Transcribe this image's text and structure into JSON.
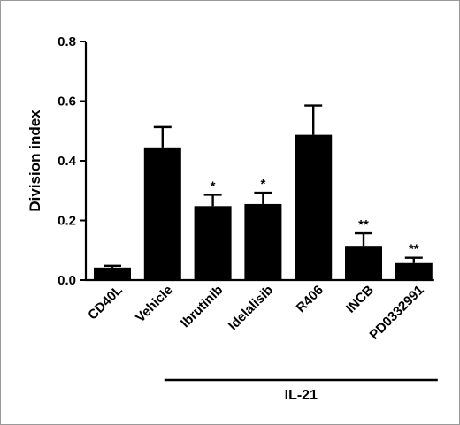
{
  "chart_data": {
    "type": "bar",
    "categories": [
      "CD40L",
      "Vehicle",
      "Ibrutinib",
      "Idelalisib",
      "R406",
      "INCB",
      "PD0332991"
    ],
    "values": [
      0.042,
      0.445,
      0.248,
      0.255,
      0.487,
      0.115,
      0.057
    ],
    "errors": [
      0.006,
      0.068,
      0.038,
      0.038,
      0.098,
      0.042,
      0.018
    ],
    "annotations": [
      "",
      "",
      "*",
      "*",
      "",
      "**",
      "**"
    ],
    "xlabel": "",
    "ylabel": "Division index",
    "ylim": [
      0,
      0.8
    ],
    "yticks": [
      0.0,
      0.2,
      0.4,
      0.6,
      0.8
    ],
    "ytick_labels": [
      "0.0",
      "0.2",
      "0.4",
      "0.6",
      "0.8"
    ],
    "group": {
      "label": "IL-21",
      "start_category": "Vehicle",
      "end_category": "PD0332991"
    },
    "bar_color": "#000000",
    "grid": false,
    "legend": "none"
  }
}
